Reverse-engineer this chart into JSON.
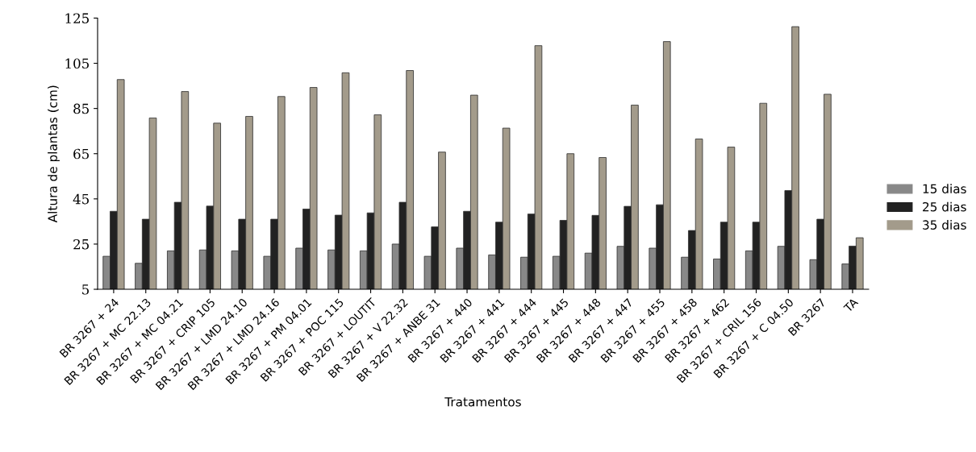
{
  "chart_data": {
    "type": "bar",
    "xlabel": "Tratamentos",
    "ylabel": "Altura de plantas (cm)",
    "categories": [
      "BR 3267 + 24",
      "BR 3267 + MC 22.13",
      "BR 3267 + MC 04.21",
      "BR 3267 + CRIP 105",
      "BR 3267 + LMD 24.10",
      "BR 3267 + LMD 24.16",
      "BR 3267 + PM 04.01",
      "BR 3267 + POC 115",
      "BR 3267 + LOUTIT",
      "BR 3267 + V 22.32",
      "BR 3267 + ANBE 31",
      "BR 3267 + 440",
      "BR 3267 + 441",
      "BR 3267 + 444",
      "BR 3267 + 445",
      "BR 3267 + 448",
      "BR 3267 + 447",
      "BR 3267 + 455",
      "BR 3267 + 458",
      "BR 3267 + 462",
      "BR 3267 + CRIL 156",
      "BR 3267 + C 04.50",
      "BR 3267",
      "TA"
    ],
    "series": [
      {
        "name": "15 dias",
        "color": "#888888",
        "values": [
          19.6,
          16.5,
          22,
          22.4,
          22,
          19.6,
          23.2,
          22.4,
          22,
          25,
          19.6,
          23.2,
          20.2,
          19.2,
          19.6,
          21,
          24,
          23.2,
          19.2,
          18.4,
          22,
          24,
          18.1,
          16.2
        ]
      },
      {
        "name": "25 dias",
        "color": "#222222",
        "values": [
          39.5,
          36,
          43.5,
          41.8,
          36,
          36,
          40.5,
          37.8,
          38.8,
          43.5,
          32.6,
          39.5,
          34.7,
          38.3,
          35.5,
          37.7,
          41.7,
          42.4,
          31,
          34.7,
          34.7,
          48.7,
          36,
          24.1
        ]
      },
      {
        "name": "35 dias",
        "color": "#a39b8b",
        "values": [
          97.8,
          80.8,
          92.5,
          78.5,
          81.5,
          90.3,
          94.3,
          100.8,
          82.2,
          101.8,
          65.7,
          90.9,
          76.3,
          112.8,
          65,
          63.3,
          86.5,
          114.6,
          71.5,
          67.9,
          87.3,
          121.2,
          91.3,
          27.8
        ]
      }
    ],
    "ylim": [
      5,
      125
    ],
    "yticks": [
      5,
      25,
      45,
      65,
      85,
      105,
      125
    ],
    "grid": false,
    "legend": "right"
  }
}
